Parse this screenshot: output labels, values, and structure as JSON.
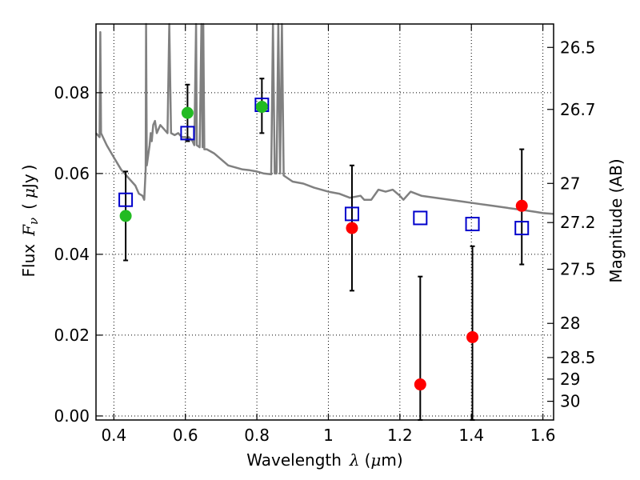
{
  "chart_data": {
    "type": "scatter",
    "xlabel": "Wavelength",
    "xlabel_symbol": "λ",
    "xlabel_unit_prefix": "μ",
    "xlabel_unit": "m",
    "ylabel": "Flux",
    "ylabel_symbol": "F",
    "ylabel_subscript": "ν",
    "ylabel_unit_prefix": "μ",
    "ylabel_unit": "Jy",
    "y2label": "Magnitude (AB)",
    "xlim": [
      0.35,
      1.63
    ],
    "ylim": [
      -0.001,
      0.097
    ],
    "x_ticks": [
      0.4,
      0.6,
      0.8,
      1.0,
      1.2,
      1.4,
      1.6
    ],
    "x_tick_labels": [
      "0.4",
      "0.6",
      "0.8",
      "1",
      "1.2",
      "1.4",
      "1.6"
    ],
    "y_ticks": [
      0.0,
      0.02,
      0.04,
      0.06,
      0.08
    ],
    "y_tick_labels": [
      "0.00",
      "0.02",
      "0.04",
      "0.06",
      "0.08"
    ],
    "y2_ticks": [
      26.5,
      26.7,
      27.0,
      27.2,
      27.5,
      28.0,
      28.5,
      29.0,
      30.0
    ],
    "y2_tick_labels": [
      "26.5",
      "26.7",
      "27",
      "27.2",
      "27.5",
      "28",
      "28.5",
      "29",
      "30"
    ],
    "grid": true,
    "colors": {
      "model_line": "#808080",
      "green_points": "#22bb22",
      "red_points": "#ff0000",
      "model_squares": "#0000cc",
      "error_bars": "#000000"
    },
    "series": [
      {
        "kind": "line",
        "points": [
          [
            0.35,
            0.07
          ],
          [
            0.36,
            0.069
          ],
          [
            0.362,
            0.095
          ],
          [
            0.364,
            0.07
          ],
          [
            0.38,
            0.067
          ],
          [
            0.4,
            0.064
          ],
          [
            0.42,
            0.061
          ],
          [
            0.44,
            0.059
          ],
          [
            0.46,
            0.057
          ],
          [
            0.47,
            0.055
          ],
          [
            0.48,
            0.0545
          ],
          [
            0.485,
            0.0535
          ],
          [
            0.489,
            0.061
          ],
          [
            0.49,
            0.097
          ],
          [
            0.492,
            0.062
          ],
          [
            0.5,
            0.067
          ],
          [
            0.503,
            0.07
          ],
          [
            0.506,
            0.068
          ],
          [
            0.51,
            0.072
          ],
          [
            0.515,
            0.073
          ],
          [
            0.52,
            0.07
          ],
          [
            0.53,
            0.072
          ],
          [
            0.54,
            0.071
          ],
          [
            0.55,
            0.07
          ],
          [
            0.555,
            0.097
          ],
          [
            0.56,
            0.07
          ],
          [
            0.57,
            0.0695
          ],
          [
            0.58,
            0.07
          ],
          [
            0.59,
            0.069
          ],
          [
            0.6,
            0.069
          ],
          [
            0.605,
            0.0685
          ],
          [
            0.61,
            0.069
          ],
          [
            0.62,
            0.068
          ],
          [
            0.625,
            0.067
          ],
          [
            0.63,
            0.097
          ],
          [
            0.632,
            0.067
          ],
          [
            0.64,
            0.0665
          ],
          [
            0.645,
            0.097
          ],
          [
            0.648,
            0.0665
          ],
          [
            0.65,
            0.097
          ],
          [
            0.653,
            0.066
          ],
          [
            0.66,
            0.066
          ],
          [
            0.68,
            0.065
          ],
          [
            0.7,
            0.0635
          ],
          [
            0.72,
            0.062
          ],
          [
            0.74,
            0.0615
          ],
          [
            0.76,
            0.061
          ],
          [
            0.78,
            0.0608
          ],
          [
            0.8,
            0.0605
          ],
          [
            0.82,
            0.06
          ],
          [
            0.84,
            0.0598
          ],
          [
            0.845,
            0.097
          ],
          [
            0.85,
            0.06
          ],
          [
            0.855,
            0.06
          ],
          [
            0.86,
            0.097
          ],
          [
            0.865,
            0.06
          ],
          [
            0.87,
            0.097
          ],
          [
            0.875,
            0.0595
          ],
          [
            0.9,
            0.058
          ],
          [
            0.93,
            0.0575
          ],
          [
            0.96,
            0.0565
          ],
          [
            1.0,
            0.0555
          ],
          [
            1.03,
            0.055
          ],
          [
            1.06,
            0.054
          ],
          [
            1.09,
            0.0545
          ],
          [
            1.1,
            0.0535
          ],
          [
            1.12,
            0.0535
          ],
          [
            1.14,
            0.056
          ],
          [
            1.16,
            0.0555
          ],
          [
            1.18,
            0.056
          ],
          [
            1.2,
            0.0545
          ],
          [
            1.21,
            0.0535
          ],
          [
            1.23,
            0.0555
          ],
          [
            1.26,
            0.0545
          ],
          [
            1.3,
            0.054
          ],
          [
            1.34,
            0.0535
          ],
          [
            1.38,
            0.053
          ],
          [
            1.42,
            0.0525
          ],
          [
            1.46,
            0.052
          ],
          [
            1.5,
            0.0515
          ],
          [
            1.54,
            0.051
          ],
          [
            1.58,
            0.0505
          ],
          [
            1.6,
            0.0502
          ],
          [
            1.63,
            0.05
          ]
        ]
      },
      {
        "kind": "points-with-errors",
        "points": [
          {
            "x": 0.433,
            "y": 0.0495
          },
          {
            "x": 0.606,
            "y": 0.075
          },
          {
            "x": 0.814,
            "y": 0.0765
          }
        ],
        "error_bars": [
          {
            "x": 0.433,
            "low": 0.0385,
            "high": 0.0605
          },
          {
            "x": 0.606,
            "low": 0.068,
            "high": 0.082
          },
          {
            "x": 0.814,
            "low": 0.07,
            "high": 0.0835
          }
        ]
      },
      {
        "kind": "points-with-errors",
        "points": [
          {
            "x": 1.066,
            "y": 0.0465
          },
          {
            "x": 1.257,
            "y": 0.0078
          },
          {
            "x": 1.403,
            "y": 0.0195
          },
          {
            "x": 1.541,
            "y": 0.052
          }
        ],
        "error_bars": [
          {
            "x": 1.066,
            "low": 0.031,
            "high": 0.062
          },
          {
            "x": 1.257,
            "low": -0.001,
            "high": 0.0345
          },
          {
            "x": 1.403,
            "low": -0.001,
            "high": 0.042
          },
          {
            "x": 1.541,
            "low": 0.0375,
            "high": 0.066
          }
        ]
      },
      {
        "kind": "squares",
        "points": [
          {
            "x": 0.433,
            "y": 0.0535
          },
          {
            "x": 0.606,
            "y": 0.07
          },
          {
            "x": 0.814,
            "y": 0.077
          },
          {
            "x": 1.066,
            "y": 0.05
          },
          {
            "x": 1.257,
            "y": 0.049
          },
          {
            "x": 1.403,
            "y": 0.0475
          },
          {
            "x": 1.541,
            "y": 0.0465
          }
        ]
      }
    ]
  }
}
